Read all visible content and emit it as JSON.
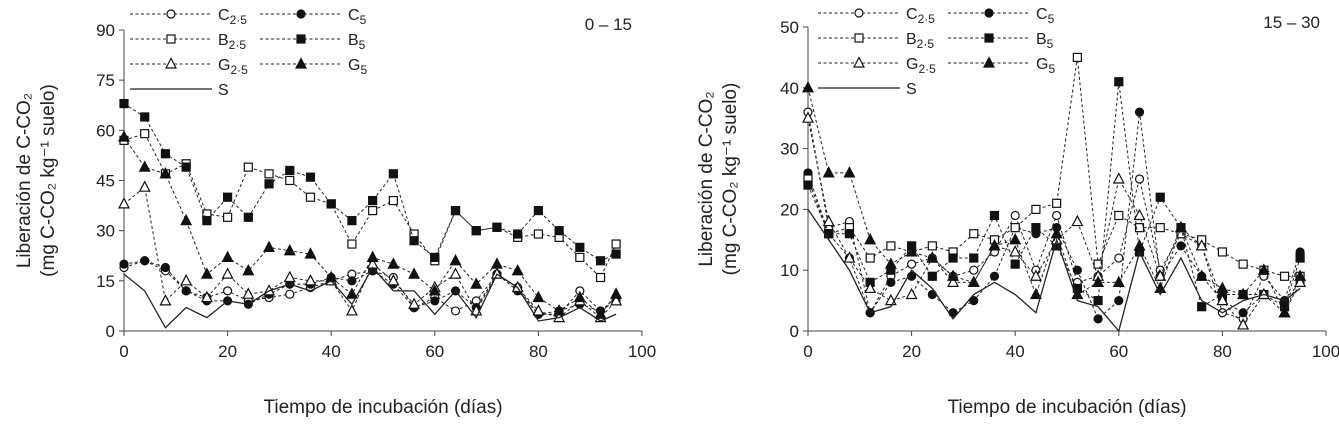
{
  "chart_data": [
    {
      "type": "line",
      "depth_label": "0 – 15",
      "xlabel": "Tiempo de incubación (días)",
      "ylabel_line1": "Liberación de C-CO₂",
      "ylabel_line2": "(mg C-CO₂ kg⁻¹ suelo)",
      "xlim": [
        0,
        100
      ],
      "ylim": [
        0,
        90
      ],
      "xticks": [
        0,
        20,
        40,
        60,
        80,
        100
      ],
      "yticks": [
        0,
        15,
        30,
        45,
        60,
        75,
        90
      ],
      "legend_position": "top-left",
      "series": [
        {
          "name": "C2·5",
          "label_main": "C",
          "label_sub": "2·5",
          "marker": "circle",
          "fill": "open",
          "style": "dashed",
          "x": [
            0,
            4,
            8,
            12,
            16,
            20,
            24,
            28,
            32,
            36,
            40,
            44,
            48,
            52,
            56,
            60,
            64,
            68,
            72,
            76,
            80,
            84,
            88,
            92,
            95
          ],
          "y": [
            19,
            21,
            18,
            12,
            10,
            12,
            9,
            10,
            11,
            13,
            15,
            17,
            18,
            16,
            7,
            10,
            6,
            9,
            17,
            13,
            5,
            5,
            12,
            6,
            9
          ]
        },
        {
          "name": "C5",
          "label_main": "C",
          "label_sub": "5",
          "marker": "circle",
          "fill": "solid",
          "style": "dashed",
          "x": [
            0,
            4,
            8,
            12,
            16,
            20,
            24,
            28,
            32,
            36,
            40,
            44,
            48,
            52,
            56,
            60,
            64,
            68,
            72,
            76,
            80,
            84,
            88,
            92,
            95
          ],
          "y": [
            20,
            21,
            19,
            12,
            9,
            9,
            8,
            11,
            14,
            14,
            16,
            15,
            18,
            14,
            7,
            9,
            12,
            7,
            17,
            12,
            5,
            6,
            8,
            6,
            10
          ]
        },
        {
          "name": "B2·5",
          "label_main": "B",
          "label_sub": "2·5",
          "marker": "square",
          "fill": "open",
          "style": "dashed",
          "x": [
            0,
            4,
            8,
            12,
            16,
            20,
            24,
            28,
            32,
            36,
            40,
            44,
            48,
            52,
            56,
            60,
            64,
            68,
            72,
            76,
            80,
            84,
            88,
            92,
            95
          ],
          "y": [
            57,
            59,
            47,
            50,
            35,
            34,
            49,
            47,
            45,
            40,
            38,
            26,
            36,
            39,
            29,
            21,
            36,
            30,
            31,
            28,
            29,
            28,
            22,
            16,
            26
          ]
        },
        {
          "name": "B5",
          "label_main": "B",
          "label_sub": "5",
          "marker": "square",
          "fill": "solid",
          "style": "dashed",
          "x": [
            0,
            4,
            8,
            12,
            16,
            20,
            24,
            28,
            32,
            36,
            40,
            44,
            48,
            52,
            56,
            60,
            64,
            68,
            72,
            76,
            80,
            84,
            88,
            92,
            95
          ],
          "y": [
            68,
            64,
            53,
            49,
            33,
            40,
            34,
            44,
            48,
            46,
            38,
            33,
            39,
            47,
            27,
            22,
            36,
            30,
            31,
            29,
            36,
            30,
            25,
            21,
            23
          ]
        },
        {
          "name": "G2·5",
          "label_main": "G",
          "label_sub": "2·5",
          "marker": "triangle",
          "fill": "open",
          "style": "dashed",
          "x": [
            0,
            4,
            8,
            12,
            16,
            20,
            24,
            28,
            32,
            36,
            40,
            44,
            48,
            52,
            56,
            60,
            64,
            68,
            72,
            76,
            80,
            84,
            88,
            92,
            95
          ],
          "y": [
            38,
            43,
            9,
            15,
            10,
            17,
            11,
            12,
            16,
            15,
            15,
            6,
            20,
            15,
            8,
            13,
            17,
            6,
            17,
            13,
            6,
            4,
            9,
            4,
            9
          ]
        },
        {
          "name": "G5",
          "label_main": "G",
          "label_sub": "5",
          "marker": "triangle",
          "fill": "solid",
          "style": "dashed",
          "x": [
            0,
            4,
            8,
            12,
            16,
            20,
            24,
            28,
            32,
            36,
            40,
            44,
            48,
            52,
            56,
            60,
            64,
            68,
            72,
            76,
            80,
            84,
            88,
            92,
            95
          ],
          "y": [
            58,
            49,
            47,
            33,
            17,
            22,
            18,
            25,
            24,
            23,
            16,
            11,
            22,
            20,
            17,
            12,
            21,
            14,
            20,
            18,
            10,
            6,
            10,
            5,
            11
          ]
        },
        {
          "name": "S",
          "label_main": "S",
          "label_sub": "",
          "marker": "none",
          "fill": "none",
          "style": "solid",
          "x": [
            0,
            4,
            8,
            12,
            16,
            20,
            24,
            28,
            32,
            36,
            40,
            44,
            48,
            52,
            56,
            60,
            64,
            68,
            72,
            76,
            80,
            84,
            88,
            92,
            95
          ],
          "y": [
            17,
            12,
            1,
            7,
            4,
            9,
            8,
            12,
            14,
            12,
            15,
            8,
            19,
            12,
            12,
            5,
            12,
            4,
            17,
            13,
            3,
            4,
            7,
            3,
            5
          ]
        }
      ]
    },
    {
      "type": "line",
      "depth_label": "15 – 30",
      "xlabel": "Tiempo de incubación (días)",
      "ylabel_line1": "Liberación de C-CO₂",
      "ylabel_line2": "(mg C-CO₂ kg⁻¹ suelo)",
      "xlim": [
        0,
        100
      ],
      "ylim": [
        0,
        50
      ],
      "xticks": [
        0,
        20,
        40,
        60,
        80,
        100
      ],
      "yticks": [
        0,
        10,
        20,
        30,
        40,
        50
      ],
      "legend_position": "top-left",
      "series": [
        {
          "name": "C2·5",
          "label_main": "C",
          "label_sub": "2·5",
          "marker": "circle",
          "fill": "open",
          "style": "dashed",
          "x": [
            0,
            4,
            8,
            12,
            16,
            20,
            24,
            28,
            32,
            36,
            40,
            44,
            48,
            52,
            56,
            60,
            64,
            68,
            72,
            76,
            80,
            84,
            88,
            92,
            95
          ],
          "y": [
            36,
            17,
            18,
            3,
            9,
            11,
            12,
            9,
            10,
            13,
            19,
            10,
            19,
            8,
            9,
            12,
            25,
            10,
            16,
            14,
            3,
            2,
            9,
            5,
            8
          ]
        },
        {
          "name": "C5",
          "label_main": "C",
          "label_sub": "5",
          "marker": "circle",
          "fill": "solid",
          "style": "dashed",
          "x": [
            0,
            4,
            8,
            12,
            16,
            20,
            24,
            28,
            32,
            36,
            40,
            44,
            48,
            52,
            56,
            60,
            64,
            68,
            72,
            76,
            80,
            84,
            88,
            92,
            95
          ],
          "y": [
            26,
            16,
            12,
            3,
            8,
            9,
            6,
            3,
            5,
            9,
            17,
            16,
            17,
            10,
            2,
            5,
            36,
            9,
            14,
            9,
            5,
            3,
            6,
            5,
            13
          ]
        },
        {
          "name": "B2·5",
          "label_main": "B",
          "label_sub": "2·5",
          "marker": "square",
          "fill": "open",
          "style": "dashed",
          "x": [
            0,
            4,
            8,
            12,
            16,
            20,
            24,
            28,
            32,
            36,
            40,
            44,
            48,
            52,
            56,
            60,
            64,
            68,
            72,
            76,
            80,
            84,
            88,
            92,
            95
          ],
          "y": [
            25,
            16,
            17,
            12,
            14,
            13,
            14,
            13,
            16,
            15,
            17,
            20,
            21,
            45,
            11,
            19,
            17,
            17,
            16,
            15,
            13,
            11,
            10,
            9,
            9
          ]
        },
        {
          "name": "B5",
          "label_main": "B",
          "label_sub": "5",
          "marker": "square",
          "fill": "solid",
          "style": "dashed",
          "x": [
            0,
            4,
            8,
            12,
            16,
            20,
            24,
            28,
            32,
            36,
            40,
            44,
            48,
            52,
            56,
            60,
            64,
            68,
            72,
            76,
            80,
            84,
            88,
            92,
            95
          ],
          "y": [
            24,
            16,
            16,
            8,
            10,
            14,
            9,
            12,
            12,
            19,
            11,
            17,
            14,
            7,
            5,
            41,
            13,
            22,
            17,
            4,
            6,
            6,
            6,
            4,
            12
          ]
        },
        {
          "name": "G2·5",
          "label_main": "G",
          "label_sub": "2·5",
          "marker": "triangle",
          "fill": "open",
          "style": "dashed",
          "x": [
            0,
            4,
            8,
            12,
            16,
            20,
            24,
            28,
            32,
            36,
            40,
            44,
            48,
            52,
            56,
            60,
            64,
            68,
            72,
            76,
            80,
            84,
            88,
            92,
            95
          ],
          "y": [
            35,
            18,
            12,
            7,
            5,
            6,
            12,
            8,
            8,
            14,
            13,
            9,
            15,
            18,
            9,
            25,
            19,
            9,
            17,
            14,
            5,
            1,
            6,
            3,
            8
          ]
        },
        {
          "name": "G5",
          "label_main": "G",
          "label_sub": "5",
          "marker": "triangle",
          "fill": "solid",
          "style": "dashed",
          "x": [
            0,
            4,
            8,
            12,
            16,
            20,
            24,
            28,
            32,
            36,
            40,
            44,
            48,
            52,
            56,
            60,
            64,
            68,
            72,
            76,
            80,
            84,
            88,
            92,
            95
          ],
          "y": [
            40,
            26,
            26,
            15,
            11,
            13,
            12,
            9,
            8,
            14,
            15,
            6,
            16,
            6,
            8,
            8,
            14,
            7,
            17,
            9,
            7,
            6,
            10,
            3,
            9
          ]
        },
        {
          "name": "S",
          "label_main": "S",
          "label_sub": "",
          "marker": "none",
          "fill": "none",
          "style": "solid",
          "x": [
            0,
            4,
            8,
            12,
            16,
            20,
            24,
            28,
            32,
            36,
            40,
            44,
            48,
            52,
            56,
            60,
            64,
            68,
            72,
            76,
            80,
            84,
            88,
            92,
            95
          ],
          "y": [
            20,
            15,
            10,
            3,
            4,
            10,
            7,
            2,
            6,
            8,
            6,
            3,
            15,
            5,
            4,
            0,
            13,
            6,
            12,
            5,
            3,
            5,
            6,
            5,
            7
          ]
        }
      ]
    }
  ]
}
